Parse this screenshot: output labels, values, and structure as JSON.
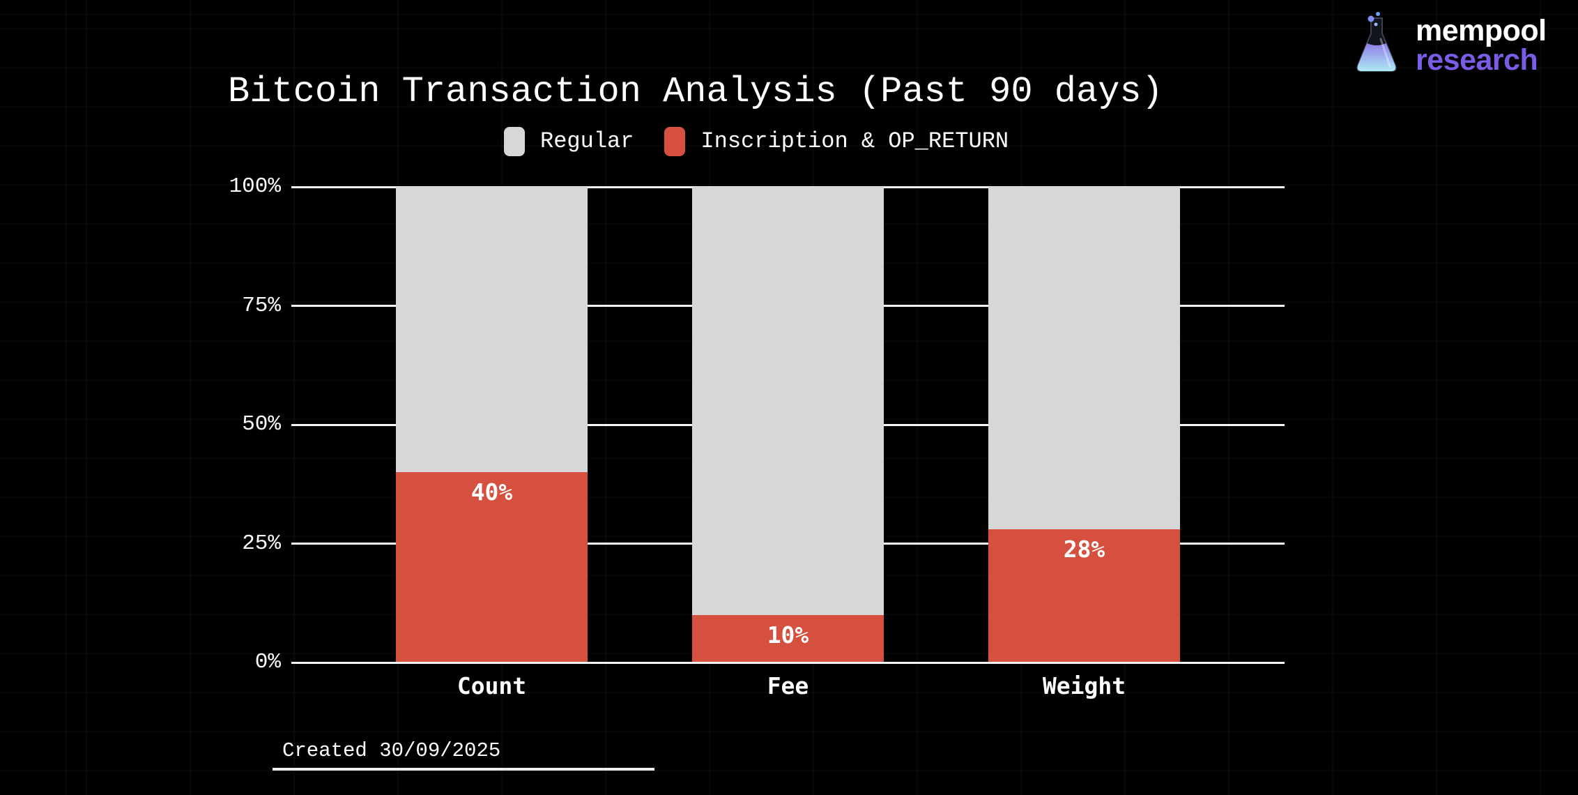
{
  "brand": {
    "logo_line1": "mempool",
    "logo_line2": "research",
    "accent_color": "#7b5ce6"
  },
  "chart_data": {
    "type": "bar",
    "stacked": true,
    "units": "percent",
    "title": "Bitcoin Transaction Analysis (Past 90 days)",
    "categories": [
      "Count",
      "Fee",
      "Weight"
    ],
    "series": [
      {
        "name": "Regular",
        "color": "#d7d7d7",
        "values": [
          60,
          90,
          72
        ]
      },
      {
        "name": "Inscription & OP_RETURN",
        "color": "#d5503f",
        "values": [
          40,
          10,
          28
        ]
      }
    ],
    "value_labels": [
      "40%",
      "10%",
      "28%"
    ],
    "y_ticks": [
      {
        "value": 0,
        "label": "0%"
      },
      {
        "value": 25,
        "label": "25%"
      },
      {
        "value": 50,
        "label": "50%"
      },
      {
        "value": 75,
        "label": "75%"
      },
      {
        "value": 100,
        "label": "100%"
      }
    ],
    "ylim": [
      0,
      100
    ],
    "grid": "horizontal",
    "legend_position": "top-center",
    "colors": {
      "background": "#000000",
      "gridline": "#f5f5f5",
      "text": "#ffffff"
    }
  },
  "footer": {
    "created": "Created 30/09/2025"
  }
}
